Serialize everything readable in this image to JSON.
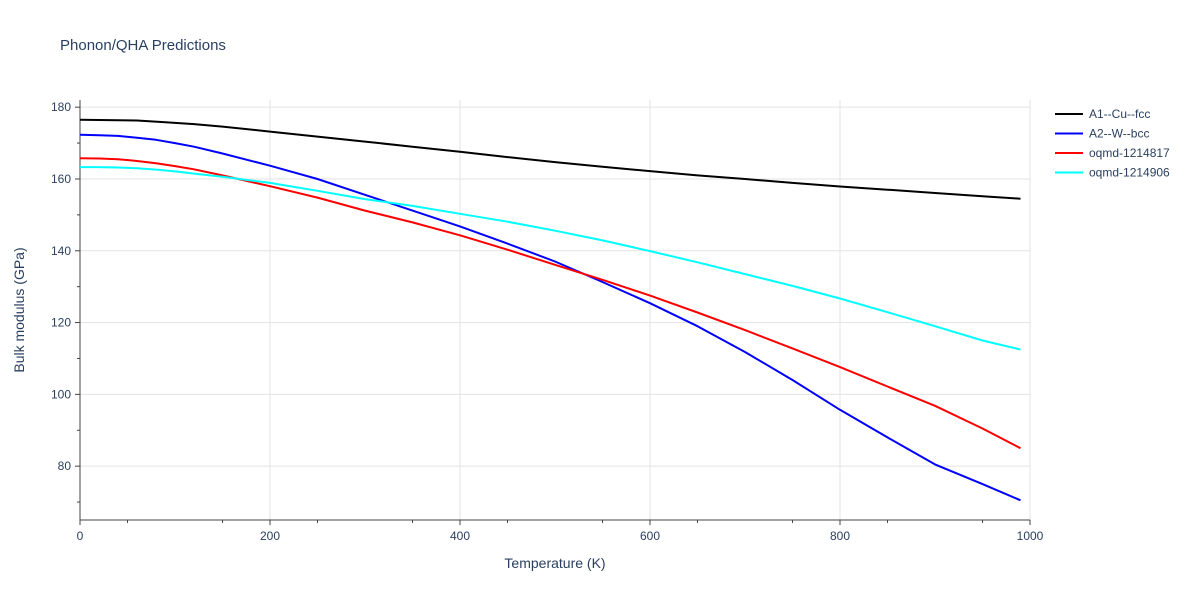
{
  "chart_data": {
    "type": "line",
    "title": "Phonon/QHA Predictions",
    "xlabel": "Temperature (K)",
    "ylabel": "Bulk modulus (GPa)",
    "xlim": [
      0,
      1000
    ],
    "ylim": [
      65,
      182
    ],
    "xticks": [
      0,
      200,
      400,
      600,
      800,
      1000
    ],
    "yticks": [
      80,
      100,
      120,
      140,
      160,
      180
    ],
    "grid": true,
    "legend_position": "top-right",
    "series": [
      {
        "name": "A1--Cu--fcc",
        "color": "#000000",
        "x": [
          0,
          30,
          60,
          90,
          120,
          150,
          200,
          250,
          300,
          350,
          400,
          450,
          500,
          550,
          600,
          650,
          700,
          750,
          800,
          850,
          900,
          950,
          990
        ],
        "y": [
          176.5,
          176.4,
          176.3,
          175.8,
          175.3,
          174.6,
          173.2,
          171.8,
          170.4,
          169.0,
          167.6,
          166.1,
          164.7,
          163.4,
          162.2,
          161.0,
          160.0,
          158.9,
          157.9,
          157.0,
          156.1,
          155.2,
          154.5
        ]
      },
      {
        "name": "A2--W--bcc",
        "color": "#0000ff",
        "x": [
          0,
          20,
          40,
          60,
          80,
          100,
          120,
          150,
          200,
          250,
          300,
          350,
          400,
          450,
          500,
          550,
          600,
          650,
          700,
          750,
          800,
          850,
          900,
          950,
          990
        ],
        "y": [
          172.3,
          172.2,
          172.0,
          171.5,
          170.9,
          170.0,
          169.0,
          167.1,
          163.7,
          160.0,
          155.6,
          151.2,
          146.8,
          142.0,
          137.0,
          131.3,
          125.4,
          119.0,
          111.8,
          104.0,
          95.7,
          88.0,
          80.5,
          75.0,
          70.5
        ]
      },
      {
        "name": "oqmd-1214817",
        "color": "#ff0000",
        "x": [
          0,
          20,
          40,
          60,
          80,
          100,
          120,
          150,
          200,
          250,
          300,
          350,
          400,
          450,
          500,
          550,
          600,
          650,
          700,
          750,
          800,
          850,
          900,
          950,
          990
        ],
        "y": [
          165.8,
          165.7,
          165.5,
          165.0,
          164.4,
          163.6,
          162.7,
          161.0,
          158.0,
          154.8,
          151.2,
          147.9,
          144.3,
          140.3,
          136.1,
          131.9,
          127.5,
          122.8,
          117.9,
          112.8,
          107.6,
          102.2,
          96.8,
          90.5,
          85.0
        ]
      },
      {
        "name": "oqmd-1214906",
        "color": "#00ffff",
        "x": [
          0,
          20,
          40,
          60,
          80,
          100,
          120,
          150,
          200,
          250,
          300,
          350,
          400,
          450,
          500,
          550,
          600,
          650,
          700,
          750,
          800,
          850,
          900,
          950,
          990
        ],
        "y": [
          163.3,
          163.3,
          163.2,
          163.0,
          162.6,
          162.1,
          161.5,
          160.6,
          158.9,
          156.7,
          154.4,
          152.5,
          150.3,
          148.1,
          145.6,
          142.9,
          139.9,
          136.8,
          133.5,
          130.2,
          126.7,
          122.9,
          119.0,
          115.0,
          112.5
        ]
      }
    ]
  }
}
